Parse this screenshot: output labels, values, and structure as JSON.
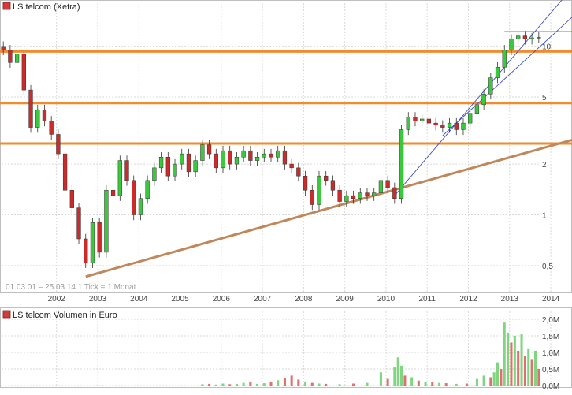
{
  "price_panel": {
    "legend_label": "LS telcom (Xetra)",
    "legend_color": "#d03c3c",
    "range_note": "01.03.01 – 25.03.14   1 Tick = 1 Monat"
  },
  "volume_panel": {
    "legend_label": "LS telcom Volumen in Euro",
    "legend_color": "#d03c3c"
  },
  "colors": {
    "up": "#3cc83c",
    "down": "#cc2b2b",
    "support_line": "#c0875a",
    "resistance_line": "#f28b30",
    "trend_thin": "#3b4bc8",
    "grid": "#d9d9d9"
  },
  "chart_data": [
    {
      "type": "candlestick",
      "title": "LS telcom (Xetra)",
      "scale": "log",
      "x_axis": {
        "period": "01.03.01 – 25.03.14",
        "tick_interval": "1 Monat",
        "tick_labels": [
          "2002",
          "2003",
          "2004",
          "2005",
          "2006",
          "2007",
          "2008",
          "2009",
          "2010",
          "2011",
          "2012",
          "2013",
          "2014"
        ]
      },
      "y_axis": {
        "position": "right",
        "tick_labels": [
          "0,5",
          "1",
          "2",
          "5",
          "10"
        ],
        "tick_values": [
          0.5,
          1,
          2,
          5,
          10
        ],
        "range": [
          0.35,
          18
        ]
      },
      "grid": true,
      "series": [
        {
          "name": "LS telcom (Xetra)",
          "interval": "monthly",
          "points": [
            {
              "date": "2001-03",
              "close": 9.5
            },
            {
              "date": "2001-05",
              "close": 8.0
            },
            {
              "date": "2001-07",
              "close": 9.0
            },
            {
              "date": "2001-09",
              "close": 5.5
            },
            {
              "date": "2001-11",
              "close": 3.3
            },
            {
              "date": "2002-01",
              "close": 4.2
            },
            {
              "date": "2002-03",
              "close": 3.6
            },
            {
              "date": "2002-05",
              "close": 3.0
            },
            {
              "date": "2002-07",
              "close": 2.3
            },
            {
              "date": "2002-09",
              "close": 1.4
            },
            {
              "date": "2002-11",
              "close": 1.1
            },
            {
              "date": "2003-01",
              "close": 0.72
            },
            {
              "date": "2003-03",
              "close": 0.52
            },
            {
              "date": "2003-05",
              "close": 0.9
            },
            {
              "date": "2003-07",
              "close": 0.6
            },
            {
              "date": "2003-09",
              "close": 1.4
            },
            {
              "date": "2003-11",
              "close": 1.3
            },
            {
              "date": "2004-01",
              "close": 2.1
            },
            {
              "date": "2004-03",
              "close": 1.6
            },
            {
              "date": "2004-05",
              "close": 1.0
            },
            {
              "date": "2004-07",
              "close": 1.25
            },
            {
              "date": "2004-09",
              "close": 1.6
            },
            {
              "date": "2004-11",
              "close": 1.9
            },
            {
              "date": "2005-01",
              "close": 2.2
            },
            {
              "date": "2005-03",
              "close": 1.7
            },
            {
              "date": "2005-05",
              "close": 2.0
            },
            {
              "date": "2005-07",
              "close": 2.3
            },
            {
              "date": "2005-09",
              "close": 1.8
            },
            {
              "date": "2005-11",
              "close": 2.1
            },
            {
              "date": "2006-01",
              "close": 2.6
            },
            {
              "date": "2006-03",
              "close": 2.3
            },
            {
              "date": "2006-05",
              "close": 1.9
            },
            {
              "date": "2006-07",
              "close": 2.4
            },
            {
              "date": "2006-09",
              "close": 2.0
            },
            {
              "date": "2006-11",
              "close": 2.2
            },
            {
              "date": "2007-01",
              "close": 2.4
            },
            {
              "date": "2007-03",
              "close": 2.1
            },
            {
              "date": "2007-05",
              "close": 2.2
            },
            {
              "date": "2007-07",
              "close": 2.3
            },
            {
              "date": "2007-09",
              "close": 2.2
            },
            {
              "date": "2007-11",
              "close": 2.4
            },
            {
              "date": "2008-01",
              "close": 2.0
            },
            {
              "date": "2008-03",
              "close": 1.9
            },
            {
              "date": "2008-05",
              "close": 1.7
            },
            {
              "date": "2008-07",
              "close": 1.4
            },
            {
              "date": "2008-09",
              "close": 1.15
            },
            {
              "date": "2008-11",
              "close": 1.7
            },
            {
              "date": "2009-01",
              "close": 1.6
            },
            {
              "date": "2009-03",
              "close": 1.4
            },
            {
              "date": "2009-05",
              "close": 1.2
            },
            {
              "date": "2009-07",
              "close": 1.3
            },
            {
              "date": "2009-09",
              "close": 1.25
            },
            {
              "date": "2009-11",
              "close": 1.35
            },
            {
              "date": "2010-01",
              "close": 1.3
            },
            {
              "date": "2010-03",
              "close": 1.35
            },
            {
              "date": "2010-05",
              "close": 1.6
            },
            {
              "date": "2010-07",
              "close": 1.45
            },
            {
              "date": "2010-09",
              "close": 1.25
            },
            {
              "date": "2010-11",
              "close": 3.2
            },
            {
              "date": "2011-01",
              "close": 3.8
            },
            {
              "date": "2011-03",
              "close": 3.6
            },
            {
              "date": "2011-05",
              "close": 3.7
            },
            {
              "date": "2011-07",
              "close": 3.5
            },
            {
              "date": "2011-09",
              "close": 3.4
            },
            {
              "date": "2011-11",
              "close": 3.3
            },
            {
              "date": "2012-01",
              "close": 3.5
            },
            {
              "date": "2012-03",
              "close": 3.2
            },
            {
              "date": "2012-05",
              "close": 3.5
            },
            {
              "date": "2012-07",
              "close": 4.0
            },
            {
              "date": "2012-09",
              "close": 4.5
            },
            {
              "date": "2012-11",
              "close": 5.2
            },
            {
              "date": "2013-01",
              "close": 6.5
            },
            {
              "date": "2013-03",
              "close": 7.5
            },
            {
              "date": "2013-05",
              "close": 9.5
            },
            {
              "date": "2013-07",
              "close": 11.0
            },
            {
              "date": "2013-09",
              "close": 11.5
            },
            {
              "date": "2013-11",
              "close": 11.0
            },
            {
              "date": "2014-01",
              "close": 11.2
            },
            {
              "date": "2014-03",
              "close": 11.3
            }
          ]
        }
      ],
      "annotations": [
        {
          "kind": "horizontal",
          "color": "orange",
          "value": 9.3
        },
        {
          "kind": "horizontal",
          "color": "orange",
          "value": 4.6
        },
        {
          "kind": "horizontal",
          "color": "orange",
          "value": 2.65
        },
        {
          "kind": "trendline",
          "color": "brown",
          "from": {
            "date": "2003-03",
            "value": 0.43
          },
          "to": {
            "date": "2014-03",
            "value": 2.45
          }
        },
        {
          "kind": "trendline",
          "color": "blue",
          "from": {
            "date": "2010-09",
            "value": 1.3
          },
          "to": {
            "date": "2014-03",
            "value": 13.0
          }
        },
        {
          "kind": "trendline",
          "color": "blue",
          "from": {
            "date": "2011-11",
            "value": 2.95
          },
          "to": {
            "date": "2014-03",
            "value": 9.8
          }
        },
        {
          "kind": "horizontal",
          "color": "blue",
          "value": 12.2,
          "from": "2013-05"
        }
      ]
    },
    {
      "type": "bar",
      "title": "LS telcom Volumen in Euro",
      "y_axis": {
        "position": "right",
        "tick_labels": [
          "0,0M",
          "0,5M",
          "1,0M",
          "1,5M",
          "2,0M"
        ],
        "range": [
          0,
          2.0
        ],
        "unit": "M"
      },
      "grid": true,
      "series": [
        {
          "name": "LS telcom Volumen in Euro",
          "points": [
            {
              "date": "2006-01",
              "value": 0.04,
              "dir": "up"
            },
            {
              "date": "2006-03",
              "value": 0.05,
              "dir": "down"
            },
            {
              "date": "2006-05",
              "value": 0.03,
              "dir": "up"
            },
            {
              "date": "2006-07",
              "value": 0.06,
              "dir": "up"
            },
            {
              "date": "2006-09",
              "value": 0.04,
              "dir": "down"
            },
            {
              "date": "2006-11",
              "value": 0.05,
              "dir": "up"
            },
            {
              "date": "2007-01",
              "value": 0.08,
              "dir": "up"
            },
            {
              "date": "2007-03",
              "value": 0.12,
              "dir": "down"
            },
            {
              "date": "2007-05",
              "value": 0.05,
              "dir": "up"
            },
            {
              "date": "2007-07",
              "value": 0.07,
              "dir": "up"
            },
            {
              "date": "2007-09",
              "value": 0.1,
              "dir": "down"
            },
            {
              "date": "2007-11",
              "value": 0.16,
              "dir": "up"
            },
            {
              "date": "2008-01",
              "value": 0.22,
              "dir": "down"
            },
            {
              "date": "2008-03",
              "value": 0.3,
              "dir": "down"
            },
            {
              "date": "2008-05",
              "value": 0.18,
              "dir": "down"
            },
            {
              "date": "2008-07",
              "value": 0.12,
              "dir": "up"
            },
            {
              "date": "2008-09",
              "value": 0.08,
              "dir": "down"
            },
            {
              "date": "2008-11",
              "value": 0.06,
              "dir": "up"
            },
            {
              "date": "2009-01",
              "value": 0.05,
              "dir": "down"
            },
            {
              "date": "2009-05",
              "value": 0.04,
              "dir": "up"
            },
            {
              "date": "2009-09",
              "value": 0.06,
              "dir": "down"
            },
            {
              "date": "2010-01",
              "value": 0.08,
              "dir": "up"
            },
            {
              "date": "2010-05",
              "value": 0.4,
              "dir": "up"
            },
            {
              "date": "2010-07",
              "value": 0.2,
              "dir": "down"
            },
            {
              "date": "2010-09",
              "value": 0.55,
              "dir": "up"
            },
            {
              "date": "2010-10",
              "value": 0.85,
              "dir": "up"
            },
            {
              "date": "2010-11",
              "value": 0.6,
              "dir": "up"
            },
            {
              "date": "2010-12",
              "value": 0.3,
              "dir": "down"
            },
            {
              "date": "2011-02",
              "value": 0.25,
              "dir": "up"
            },
            {
              "date": "2011-04",
              "value": 0.15,
              "dir": "down"
            },
            {
              "date": "2011-06",
              "value": 0.12,
              "dir": "up"
            },
            {
              "date": "2011-08",
              "value": 0.1,
              "dir": "down"
            },
            {
              "date": "2011-10",
              "value": 0.08,
              "dir": "up"
            },
            {
              "date": "2011-12",
              "value": 0.07,
              "dir": "down"
            },
            {
              "date": "2012-03",
              "value": 0.05,
              "dir": "up"
            },
            {
              "date": "2012-06",
              "value": 0.06,
              "dir": "down"
            },
            {
              "date": "2012-09",
              "value": 0.2,
              "dir": "up"
            },
            {
              "date": "2012-11",
              "value": 0.3,
              "dir": "up"
            },
            {
              "date": "2013-01",
              "value": 0.25,
              "dir": "down"
            },
            {
              "date": "2013-02",
              "value": 0.4,
              "dir": "up"
            },
            {
              "date": "2013-03",
              "value": 0.7,
              "dir": "up"
            },
            {
              "date": "2013-04",
              "value": 0.5,
              "dir": "down"
            },
            {
              "date": "2013-05",
              "value": 1.9,
              "dir": "up"
            },
            {
              "date": "2013-06",
              "value": 1.6,
              "dir": "up"
            },
            {
              "date": "2013-07",
              "value": 1.3,
              "dir": "down"
            },
            {
              "date": "2013-08",
              "value": 1.5,
              "dir": "up"
            },
            {
              "date": "2013-09",
              "value": 1.05,
              "dir": "down"
            },
            {
              "date": "2013-10",
              "value": 1.55,
              "dir": "up"
            },
            {
              "date": "2013-11",
              "value": 0.9,
              "dir": "down"
            },
            {
              "date": "2013-12",
              "value": 1.1,
              "dir": "up"
            },
            {
              "date": "2014-01",
              "value": 0.8,
              "dir": "down"
            },
            {
              "date": "2014-02",
              "value": 1.05,
              "dir": "up"
            },
            {
              "date": "2014-03",
              "value": 0.5,
              "dir": "down"
            }
          ]
        }
      ]
    }
  ]
}
